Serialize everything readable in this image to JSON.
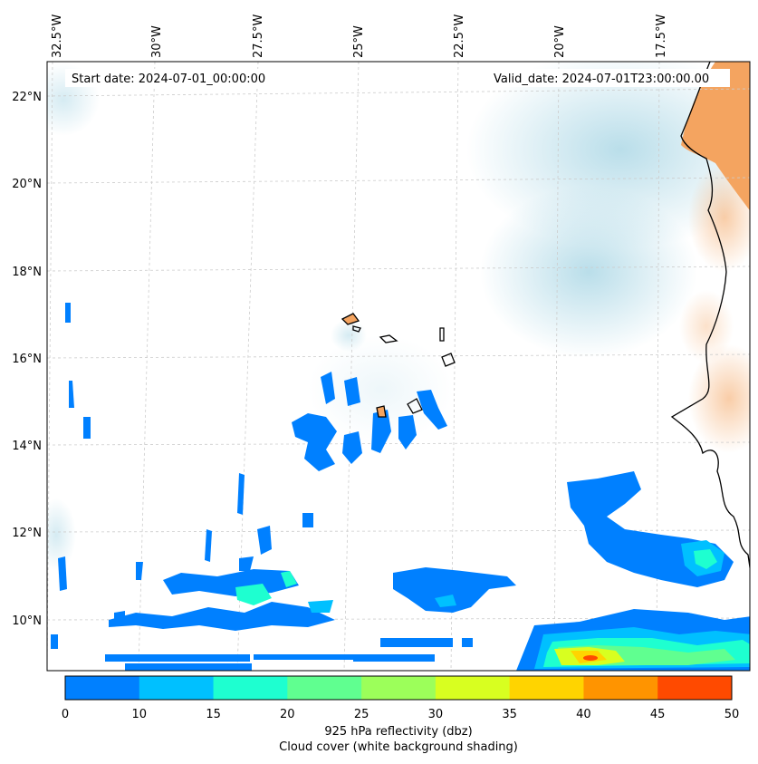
{
  "map": {
    "start_date": "Start date: 2024-07-01_00:00:00",
    "valid_date": "Valid_date: 2024-07-01T23:00:00.00",
    "lon_labels": [
      "32.5°W",
      "30°W",
      "27.5°W",
      "25°W",
      "22.5°W",
      "20°W",
      "17.5°W"
    ],
    "lat_labels": [
      "22°N",
      "20°N",
      "18°N",
      "16°N",
      "14°N",
      "12°N",
      "10°N"
    ],
    "land_color": "#f4a460",
    "cloud_color": "#add8e6"
  },
  "colorbar": {
    "ticks": [
      "0",
      "5",
      "10",
      "15",
      "20",
      "25",
      "30",
      "35",
      "40",
      "45",
      "50"
    ],
    "colors": [
      "#0080ff",
      "#00c0ff",
      "#1effd0",
      "#60ff90",
      "#9cff5a",
      "#d8ff20",
      "#ffd400",
      "#ff9400",
      "#ff4a00"
    ],
    "label_line1": "925 hPa reflectivity (dbz)",
    "label_line2": "Cloud cover (white background shading)"
  }
}
